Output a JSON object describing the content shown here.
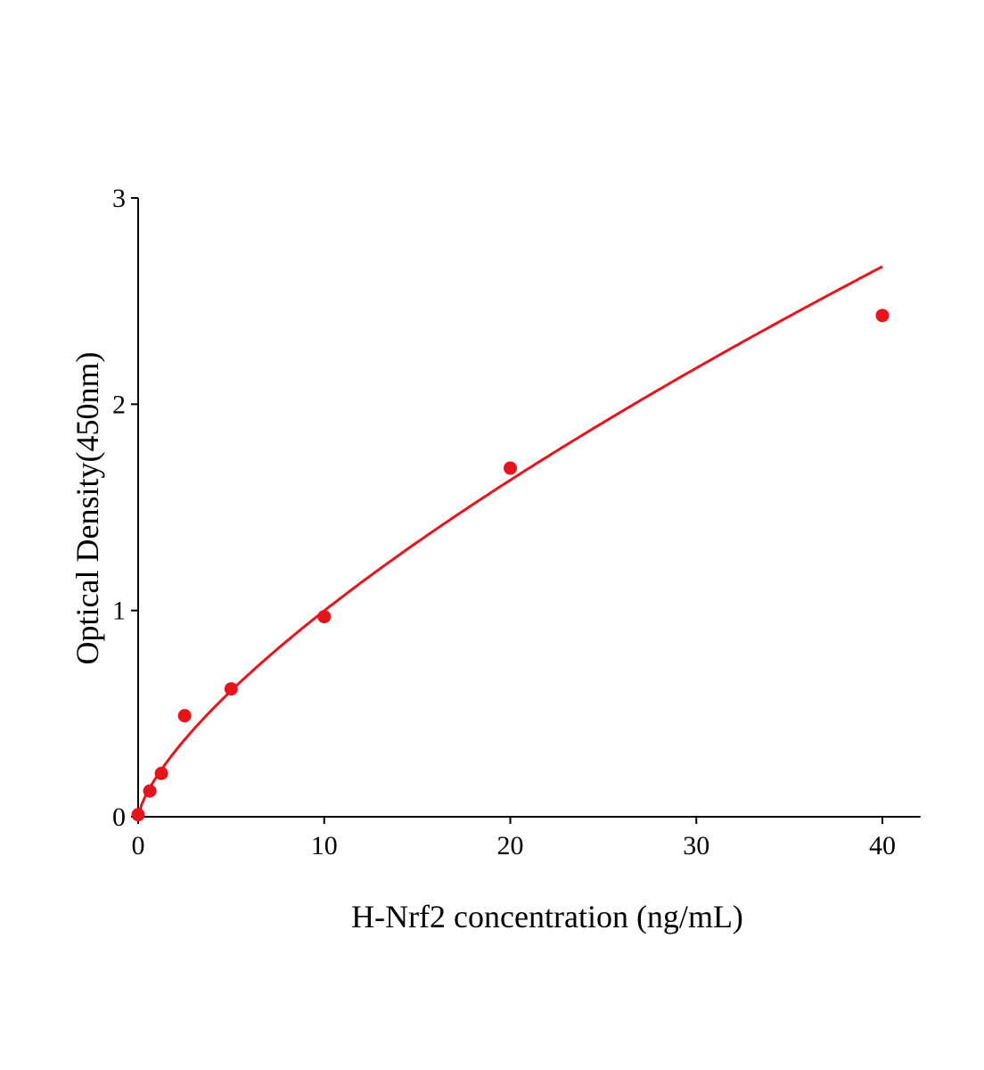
{
  "chart_data": {
    "type": "scatter",
    "title": "",
    "xlabel": "H-Nrf2 concentration (ng/mL)",
    "ylabel": "Optical Density(450nm)",
    "xlim": [
      0,
      42
    ],
    "ylim": [
      0,
      3
    ],
    "xticks": [
      "0",
      "10",
      "20",
      "30",
      "40"
    ],
    "yticks": [
      "0",
      "1",
      "2",
      "3"
    ],
    "grid": false,
    "legend": "none",
    "color": "#e8141c",
    "series": [
      {
        "x": [
          0,
          0.625,
          1.25,
          2.5,
          5,
          10,
          20,
          40
        ],
        "y": [
          0.01,
          0.125,
          0.21,
          0.49,
          0.62,
          0.97,
          1.69,
          2.43
        ],
        "fit_curve": true
      }
    ]
  }
}
